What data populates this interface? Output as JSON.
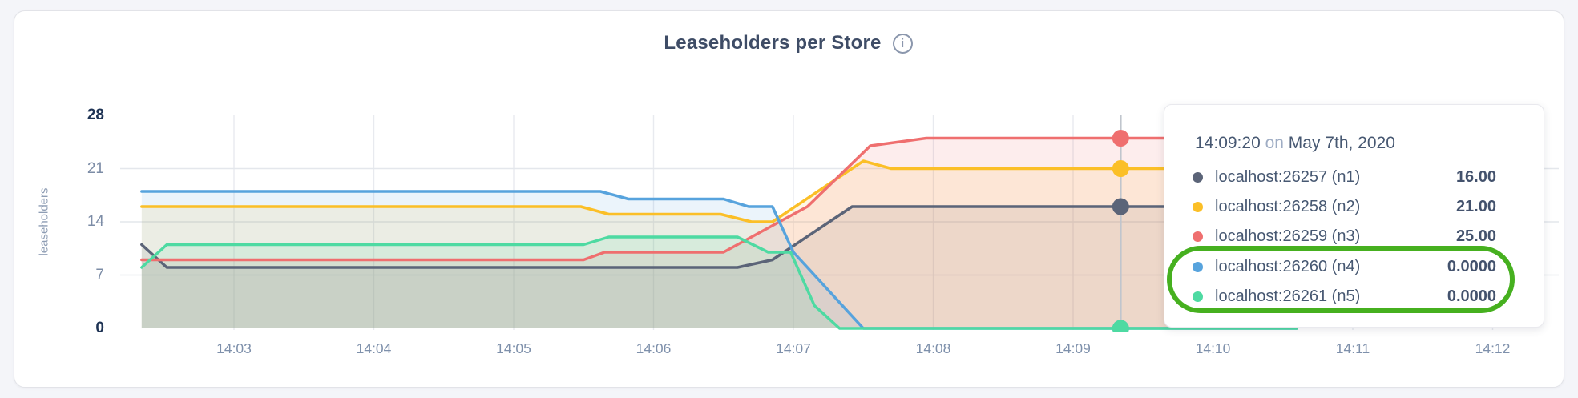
{
  "header": {
    "title": "Leaseholders per Store",
    "info_icon_glyph": "i"
  },
  "y_axis": {
    "label": "leaseholders",
    "ticks": [
      "0",
      "7",
      "14",
      "21",
      "28"
    ]
  },
  "x_axis": {
    "ticks": [
      "14:03",
      "14:04",
      "14:05",
      "14:06",
      "14:07",
      "14:08",
      "14:09",
      "14:10",
      "14:11",
      "14:12"
    ]
  },
  "tooltip": {
    "time": "14:09:20",
    "on_word": "on",
    "date": "May 7th, 2020",
    "rows": [
      {
        "name": "localhost:26257 (n1)",
        "value": "16.00",
        "color": "#5b6478",
        "highlighted": false
      },
      {
        "name": "localhost:26258 (n2)",
        "value": "21.00",
        "color": "#fbbf27",
        "highlighted": false
      },
      {
        "name": "localhost:26259 (n3)",
        "value": "25.00",
        "color": "#ef6f6f",
        "highlighted": false
      },
      {
        "name": "localhost:26260 (n4)",
        "value": "0.0000",
        "color": "#57a3dd",
        "highlighted": true
      },
      {
        "name": "localhost:26261 (n5)",
        "value": "0.0000",
        "color": "#4edaa2",
        "highlighted": true
      }
    ],
    "highlight_color": "#46b01f"
  },
  "chart_data": {
    "type": "area",
    "title": "Leaseholders per Store",
    "xlabel": "",
    "ylabel": "leaseholders",
    "ylim": [
      0,
      28
    ],
    "y_ticks": [
      0,
      7,
      14,
      21,
      28
    ],
    "x_tick_labels": [
      "14:03",
      "14:04",
      "14:05",
      "14:06",
      "14:07",
      "14:08",
      "14:09",
      "14:10",
      "14:11",
      "14:12"
    ],
    "x_tick_minutes": [
      3,
      4,
      5,
      6,
      7,
      8,
      9,
      10,
      11,
      12
    ],
    "x_start_minute": 2.34,
    "x_end_minute": 10.6,
    "grid": true,
    "legend_position": "tooltip-overlay-right",
    "fill_opacity": 0.12,
    "hover": {
      "minute": 9.34,
      "time_label": "14:09:20",
      "date_label": "May 7th, 2020"
    },
    "series": [
      {
        "name": "localhost:26257 (n1)",
        "color": "#5b6478",
        "hover_value": 16,
        "hover_value_label": "16.00",
        "points": [
          [
            2.34,
            11
          ],
          [
            2.52,
            8
          ],
          [
            6.6,
            8
          ],
          [
            6.85,
            9
          ],
          [
            7.42,
            16
          ],
          [
            10.6,
            16
          ]
        ]
      },
      {
        "name": "localhost:26258 (n2)",
        "color": "#fbbf27",
        "hover_value": 21,
        "hover_value_label": "21.00",
        "points": [
          [
            2.34,
            16
          ],
          [
            5.48,
            16
          ],
          [
            5.68,
            15
          ],
          [
            6.48,
            15
          ],
          [
            6.7,
            14
          ],
          [
            6.85,
            14
          ],
          [
            7.5,
            22
          ],
          [
            7.7,
            21
          ],
          [
            10.6,
            21
          ]
        ]
      },
      {
        "name": "localhost:26259 (n3)",
        "color": "#ef6f6f",
        "hover_value": 25,
        "hover_value_label": "25.00",
        "points": [
          [
            2.34,
            9
          ],
          [
            5.5,
            9
          ],
          [
            5.65,
            10
          ],
          [
            6.5,
            10
          ],
          [
            7.1,
            16
          ],
          [
            7.55,
            24
          ],
          [
            7.95,
            25
          ],
          [
            10.6,
            25
          ]
        ]
      },
      {
        "name": "localhost:26260 (n4)",
        "color": "#57a3dd",
        "hover_value": 0,
        "hover_value_label": "0.0000",
        "points": [
          [
            2.34,
            18
          ],
          [
            5.62,
            18
          ],
          [
            5.82,
            17
          ],
          [
            6.5,
            17
          ],
          [
            6.68,
            16
          ],
          [
            6.85,
            16
          ],
          [
            7.0,
            10
          ],
          [
            7.5,
            0
          ],
          [
            10.6,
            0
          ]
        ]
      },
      {
        "name": "localhost:26261 (n5)",
        "color": "#4edaa2",
        "hover_value": 0,
        "hover_value_label": "0.0000",
        "points": [
          [
            2.34,
            8
          ],
          [
            2.52,
            11
          ],
          [
            5.5,
            11
          ],
          [
            5.68,
            12
          ],
          [
            6.6,
            12
          ],
          [
            6.82,
            10
          ],
          [
            6.98,
            10
          ],
          [
            7.15,
            3
          ],
          [
            7.33,
            0
          ],
          [
            10.6,
            0
          ]
        ]
      }
    ]
  }
}
